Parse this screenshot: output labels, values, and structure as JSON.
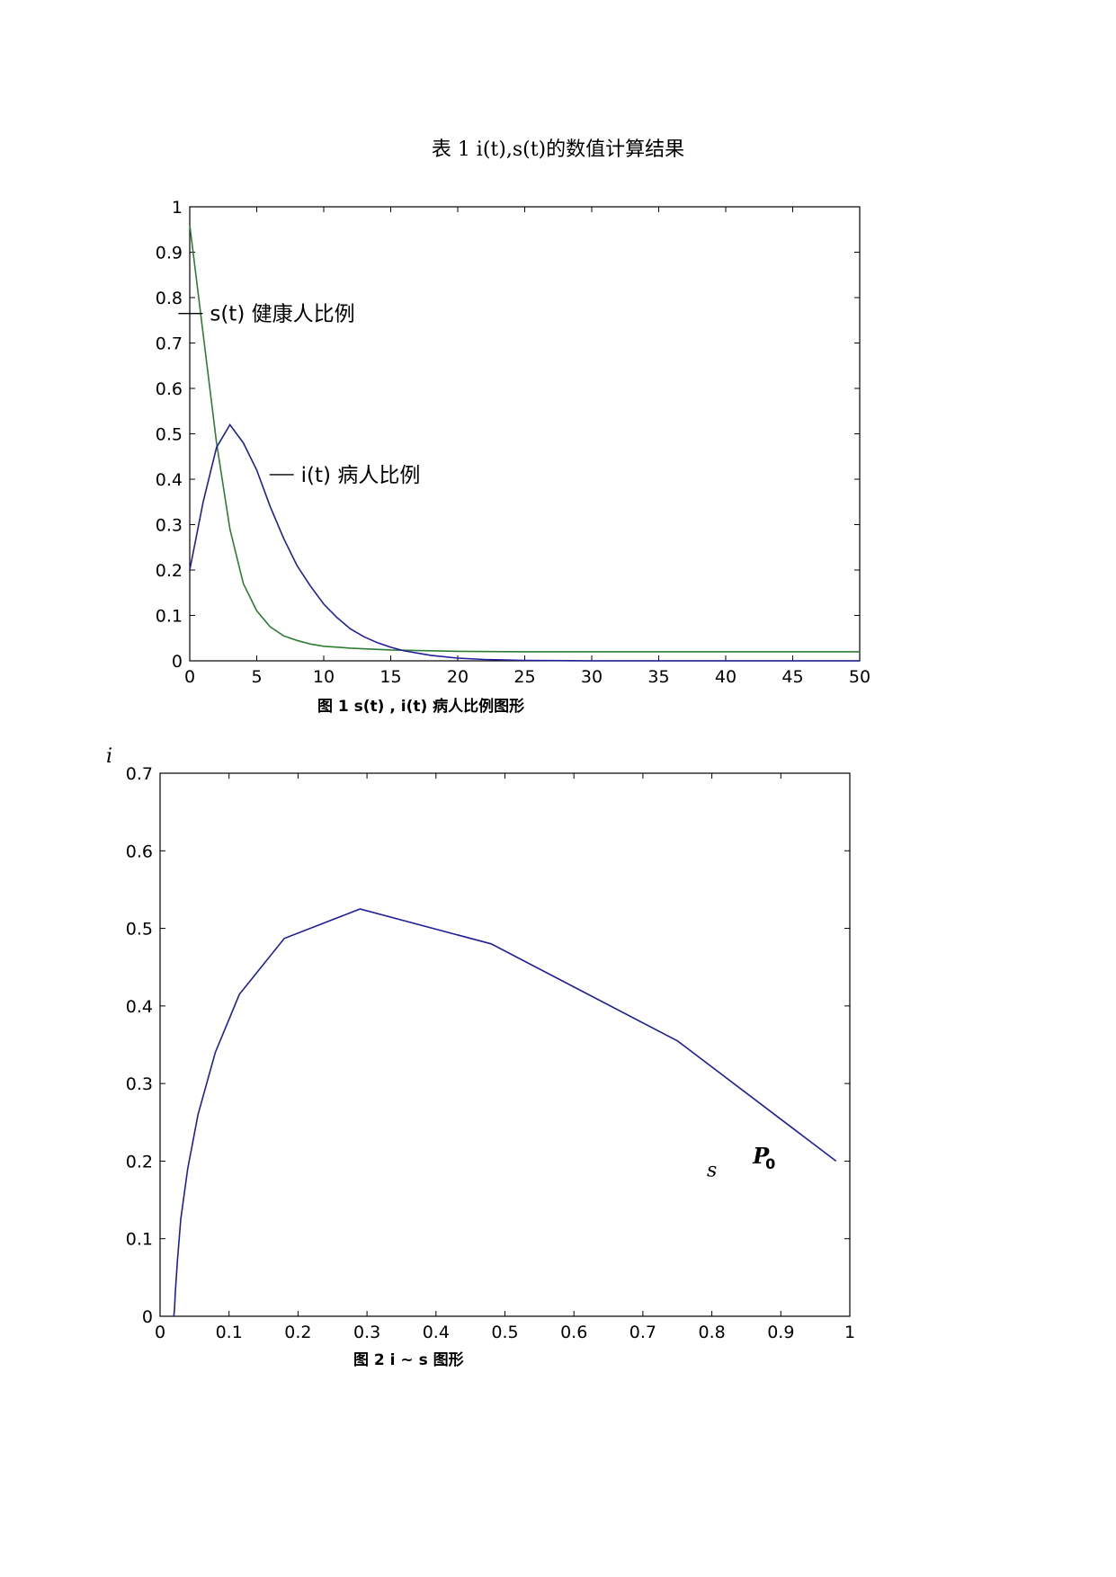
{
  "page_title": "表 1    i(t),s(t)的数值计算结果",
  "colors": {
    "s_series": "#2e7d32",
    "i_series": "#1f1f9a",
    "axis": "#000000"
  },
  "chart_data": [
    {
      "type": "line",
      "caption": "图 1   s(t) , i(t)  病人比例图形",
      "xlim": [
        0,
        50
      ],
      "ylim": [
        0,
        1
      ],
      "xticks": [
        "0",
        "5",
        "10",
        "15",
        "20",
        "25",
        "30",
        "35",
        "40",
        "45",
        "50"
      ],
      "yticks": [
        "0",
        "0.1",
        "0.2",
        "0.3",
        "0.4",
        "0.5",
        "0.6",
        "0.7",
        "0.8",
        "0.9",
        "1"
      ],
      "grid": false,
      "series": [
        {
          "name": "s(t) 健康人比例",
          "color": "#2e7d32",
          "x": [
            0,
            1,
            2,
            3,
            4,
            5,
            6,
            7,
            8,
            9,
            10,
            12,
            15,
            20,
            25,
            30,
            35,
            40,
            45,
            50
          ],
          "values": [
            0.96,
            0.72,
            0.48,
            0.29,
            0.17,
            0.11,
            0.075,
            0.055,
            0.045,
            0.037,
            0.032,
            0.028,
            0.024,
            0.021,
            0.02,
            0.02,
            0.02,
            0.02,
            0.02,
            0.02
          ]
        },
        {
          "name": "i(t) 病人比例",
          "color": "#1f1f9a",
          "x": [
            0,
            1,
            2,
            3,
            4,
            5,
            6,
            7,
            8,
            9,
            10,
            11,
            12,
            13,
            14,
            15,
            16,
            18,
            20,
            22,
            25,
            30,
            35,
            40,
            45,
            50
          ],
          "values": [
            0.2,
            0.35,
            0.47,
            0.52,
            0.48,
            0.42,
            0.34,
            0.27,
            0.21,
            0.165,
            0.125,
            0.095,
            0.07,
            0.053,
            0.04,
            0.03,
            0.022,
            0.012,
            0.006,
            0.003,
            0.001,
            0,
            0,
            0,
            0,
            0
          ]
        }
      ],
      "annotations": [
        {
          "text": "s(t) 健康人比例",
          "x": 1.5,
          "y": 0.765
        },
        {
          "text": "i(t) 病人比例",
          "x": 8.3,
          "y": 0.41
        }
      ]
    },
    {
      "type": "line",
      "caption": "图 2    i ~ s 图形",
      "xlim": [
        0,
        1
      ],
      "ylim": [
        0,
        0.7
      ],
      "xticks": [
        "0",
        "0.1",
        "0.2",
        "0.3",
        "0.4",
        "0.5",
        "0.6",
        "0.7",
        "0.8",
        "0.9",
        "1"
      ],
      "yticks": [
        "0",
        "0.1",
        "0.2",
        "0.3",
        "0.4",
        "0.5",
        "0.6",
        "0.7"
      ],
      "ylabel": "i",
      "xlabel": "s",
      "grid": false,
      "series": [
        {
          "color": "#1f1f9a",
          "x": [
            0.98,
            0.75,
            0.48,
            0.29,
            0.18,
            0.115,
            0.08,
            0.055,
            0.04,
            0.03,
            0.025,
            0.022,
            0.021,
            0.02
          ],
          "values": [
            0.2,
            0.355,
            0.48,
            0.525,
            0.487,
            0.415,
            0.34,
            0.26,
            0.19,
            0.125,
            0.07,
            0.03,
            0.01,
            0
          ]
        }
      ],
      "point_label": {
        "text": "P",
        "subscript": "0",
        "x": 0.875,
        "y": 0.197
      }
    }
  ]
}
